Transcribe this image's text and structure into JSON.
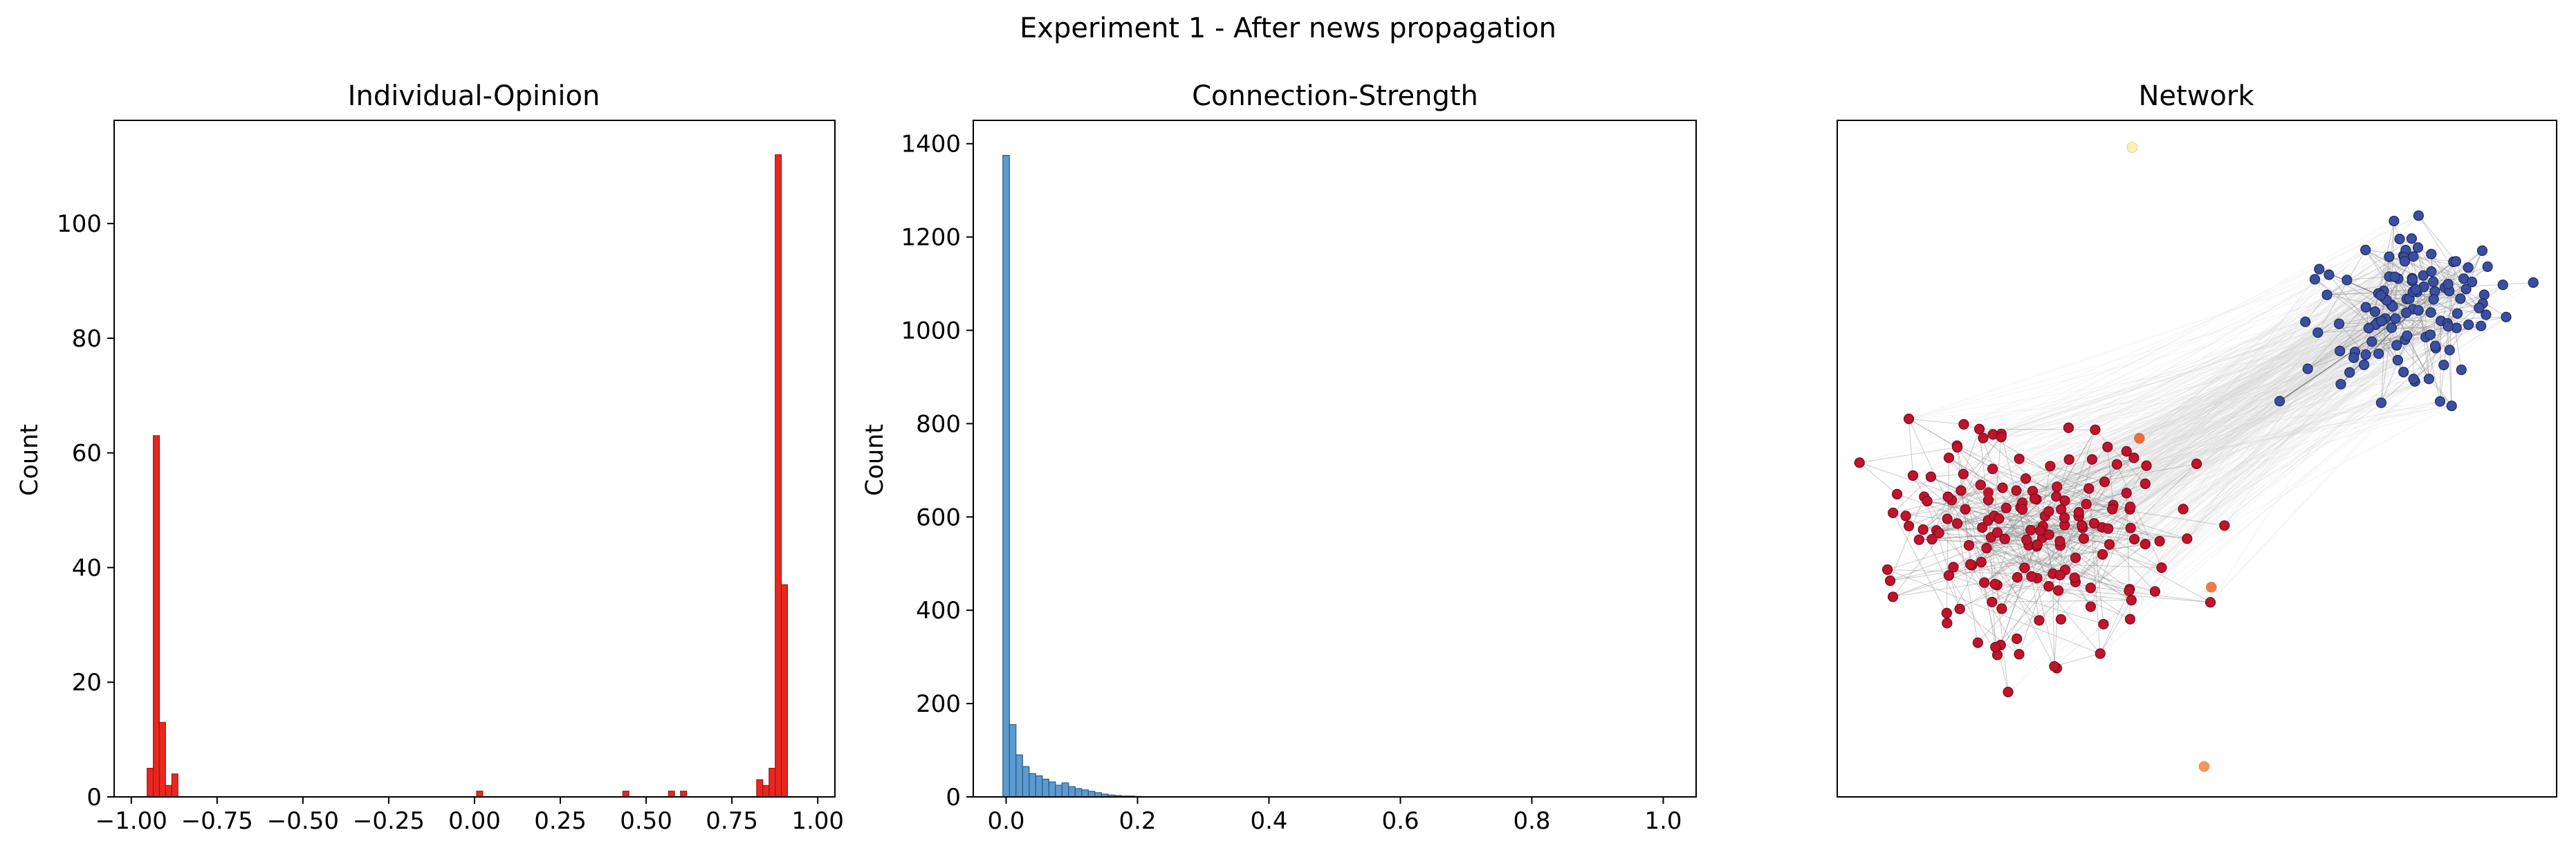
{
  "figure": {
    "suptitle": "Experiment 1 - After news propagation"
  },
  "chart_data": [
    {
      "type": "bar",
      "kind": "histogram",
      "title": "Individual-Opinion",
      "xlabel": "",
      "ylabel": "Count",
      "xlim": [
        -1.05,
        1.05
      ],
      "ylim": [
        0,
        118
      ],
      "x_ticks": [
        -1.0,
        -0.75,
        -0.5,
        -0.25,
        0.0,
        0.25,
        0.5,
        0.75,
        1.0
      ],
      "x_tick_labels": [
        "−1.00",
        "−0.75",
        "−0.50",
        "−0.25",
        "0.00",
        "0.25",
        "0.50",
        "0.75",
        "1.00"
      ],
      "y_ticks": [
        0,
        20,
        40,
        60,
        80,
        100
      ],
      "bin_width": 0.0178,
      "color": "#e8281f",
      "edge_color": "#a31510",
      "bins": [
        {
          "x": -0.945,
          "count": 5
        },
        {
          "x": -0.927,
          "count": 63
        },
        {
          "x": -0.909,
          "count": 13
        },
        {
          "x": -0.891,
          "count": 2
        },
        {
          "x": -0.873,
          "count": 4
        },
        {
          "x": 0.015,
          "count": 1
        },
        {
          "x": 0.441,
          "count": 1
        },
        {
          "x": 0.574,
          "count": 1
        },
        {
          "x": 0.609,
          "count": 1
        },
        {
          "x": 0.831,
          "count": 3
        },
        {
          "x": 0.849,
          "count": 2
        },
        {
          "x": 0.867,
          "count": 5
        },
        {
          "x": 0.885,
          "count": 112
        },
        {
          "x": 0.903,
          "count": 37
        }
      ]
    },
    {
      "type": "bar",
      "kind": "histogram",
      "title": "Connection-Strength",
      "xlabel": "",
      "ylabel": "Count",
      "xlim": [
        -0.05,
        1.05
      ],
      "ylim": [
        0,
        1450
      ],
      "x_ticks": [
        0.0,
        0.2,
        0.4,
        0.6,
        0.8,
        1.0
      ],
      "x_tick_labels": [
        "0.0",
        "0.2",
        "0.4",
        "0.6",
        "0.8",
        "1.0"
      ],
      "y_ticks": [
        0,
        200,
        400,
        600,
        800,
        1000,
        1200,
        1400
      ],
      "bin_width": 0.01,
      "color": "#5b9bd0",
      "edge_color": "#2a5a85",
      "bins": [
        {
          "x": 0.0,
          "count": 1375
        },
        {
          "x": 0.01,
          "count": 155
        },
        {
          "x": 0.02,
          "count": 90
        },
        {
          "x": 0.03,
          "count": 65
        },
        {
          "x": 0.04,
          "count": 50
        },
        {
          "x": 0.05,
          "count": 45
        },
        {
          "x": 0.06,
          "count": 38
        },
        {
          "x": 0.07,
          "count": 32
        },
        {
          "x": 0.08,
          "count": 25
        },
        {
          "x": 0.09,
          "count": 30
        },
        {
          "x": 0.1,
          "count": 22
        },
        {
          "x": 0.11,
          "count": 18
        },
        {
          "x": 0.12,
          "count": 15
        },
        {
          "x": 0.13,
          "count": 12
        },
        {
          "x": 0.14,
          "count": 9
        },
        {
          "x": 0.15,
          "count": 6
        },
        {
          "x": 0.16,
          "count": 4
        },
        {
          "x": 0.17,
          "count": 3
        },
        {
          "x": 0.18,
          "count": 2
        },
        {
          "x": 0.19,
          "count": 2
        },
        {
          "x": 0.2,
          "count": 1
        }
      ]
    },
    {
      "type": "scatter",
      "kind": "network",
      "title": "Network",
      "axes_visible": false,
      "xlim": [
        0,
        1
      ],
      "ylim": [
        0,
        1
      ],
      "clusters": [
        {
          "name": "",
          "color": "#c0142c",
          "edge": "#7a0a1a",
          "center": [
            0.27,
            0.38
          ],
          "spread": [
            0.115,
            0.095
          ],
          "count": 160
        },
        {
          "name": "",
          "color": "#3a4fa0",
          "edge": "#1e2a60",
          "center": [
            0.8,
            0.72
          ],
          "spread": [
            0.075,
            0.075
          ],
          "count": 110
        }
      ],
      "outliers": [
        {
          "x": 0.42,
          "y": 0.53,
          "color": "#f06a3a"
        },
        {
          "x": 0.52,
          "y": 0.31,
          "color": "#f07a4a"
        },
        {
          "x": 0.51,
          "y": 0.045,
          "color": "#f29a5a"
        },
        {
          "x": 0.41,
          "y": 0.96,
          "color": "#fdf3b0"
        },
        {
          "x": 0.21,
          "y": 0.45,
          "color": "#c0142c"
        }
      ],
      "bridge_nodes": [
        {
          "x": 0.615,
          "y": 0.585
        },
        {
          "x": 0.7,
          "y": 0.61
        },
        {
          "x": 0.67,
          "y": 0.78
        }
      ]
    }
  ]
}
